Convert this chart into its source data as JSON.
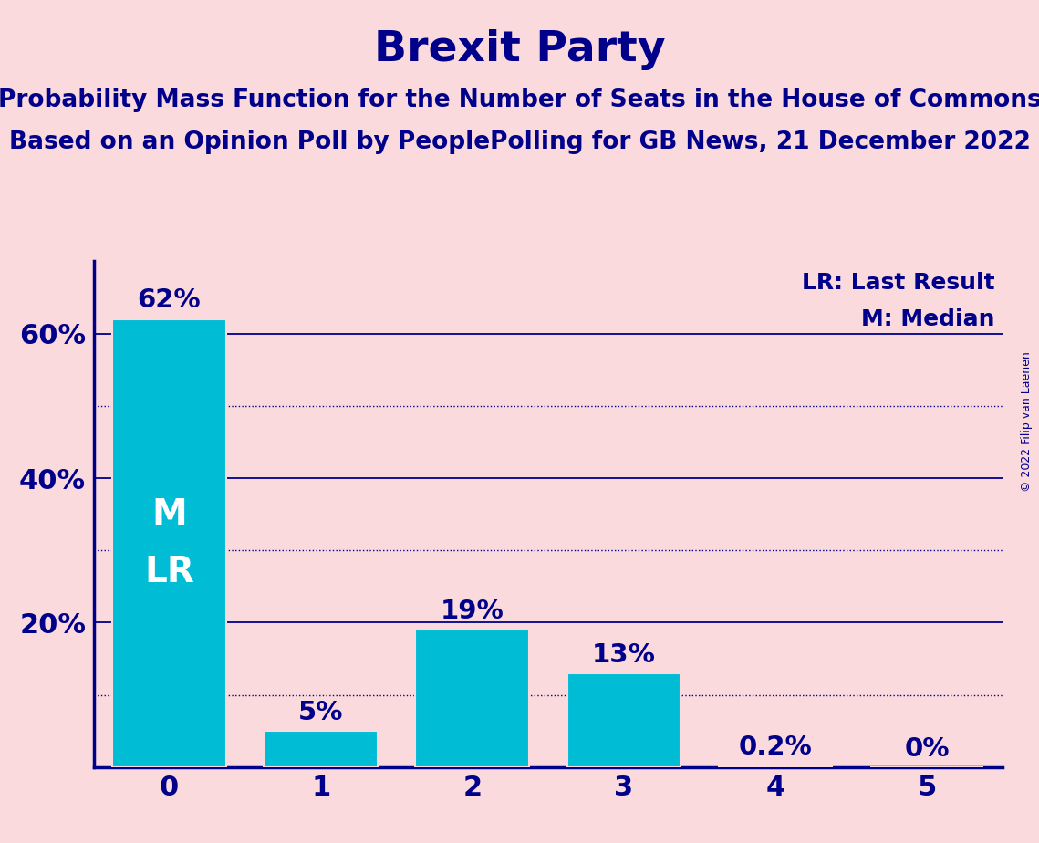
{
  "title": "Brexit Party",
  "subtitle1": "Probability Mass Function for the Number of Seats in the House of Commons",
  "subtitle2": "Based on an Opinion Poll by PeoplePolling for GB News, 21 December 2022",
  "copyright": "© 2022 Filip van Laenen",
  "categories": [
    0,
    1,
    2,
    3,
    4,
    5
  ],
  "values": [
    62,
    5,
    19,
    13,
    0.2,
    0
  ],
  "bar_labels": [
    "62%",
    "5%",
    "19%",
    "13%",
    "0.2%",
    "0%"
  ],
  "bar_color": "#00BCD4",
  "background_color": "#FADADD",
  "title_color": "#00008B",
  "axis_color": "#00008B",
  "bar_label_color": "#00008B",
  "legend_lr": "LR: Last Result",
  "legend_m": "M: Median",
  "median_label": "M",
  "lr_label": "LR",
  "yticks": [
    20,
    40,
    60
  ],
  "ytick_labels": [
    "20%",
    "40%",
    "60%"
  ],
  "ylim": [
    0,
    70
  ],
  "solid_gridlines": [
    20,
    40,
    60
  ],
  "dotted_gridlines": [
    10,
    30,
    50
  ],
  "gridline_solid_color": "#00008B",
  "gridline_dotted_color": "#00008B",
  "title_fontsize": 34,
  "subtitle_fontsize": 19,
  "tick_fontsize": 22,
  "legend_fontsize": 18,
  "bar_label_fontsize": 21,
  "inside_label_fontsize": 28,
  "copyright_fontsize": 9
}
